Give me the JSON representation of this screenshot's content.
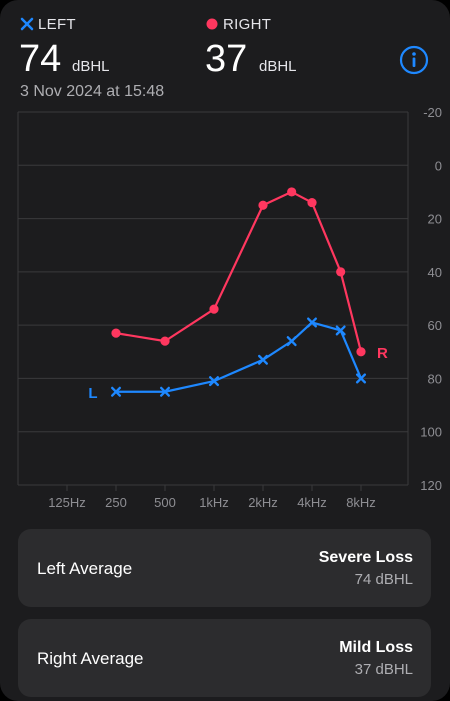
{
  "header": {
    "left": {
      "label": "LEFT",
      "value": "74",
      "unit": "dBHL",
      "color": "#1e88ff"
    },
    "right": {
      "label": "RIGHT",
      "value": "37",
      "unit": "dBHL",
      "color": "#ff375f"
    },
    "date": "3 Nov 2024 at 15:48",
    "info_icon": "info-circle-icon"
  },
  "chart_data": {
    "type": "line",
    "x_tick_labels": [
      "125Hz",
      "250",
      "500",
      "1kHz",
      "2kHz",
      "4kHz",
      "8kHz"
    ],
    "x_tick_freqs": [
      125,
      250,
      500,
      1000,
      2000,
      4000,
      8000
    ],
    "y_tick_labels": [
      "-20",
      "0",
      "20",
      "40",
      "60",
      "80",
      "100",
      "120"
    ],
    "ylim": [
      -20,
      120
    ],
    "y_inverted": true,
    "grid": true,
    "series": [
      {
        "name": "R",
        "color": "#ff375f",
        "marker": "circle",
        "x": [
          250,
          500,
          1000,
          2000,
          3000,
          4000,
          6000,
          8000
        ],
        "y": [
          63,
          66,
          54,
          15,
          10,
          14,
          40,
          70
        ]
      },
      {
        "name": "L",
        "color": "#1e88ff",
        "marker": "x",
        "x": [
          250,
          500,
          1000,
          2000,
          3000,
          4000,
          6000,
          8000
        ],
        "y": [
          85,
          85,
          81,
          73,
          66,
          59,
          62,
          80
        ]
      }
    ]
  },
  "cards": {
    "left": {
      "label": "Left Average",
      "severity": "Severe Loss",
      "value": "74 dBHL"
    },
    "right": {
      "label": "Right Average",
      "severity": "Mild Loss",
      "value": "37 dBHL"
    }
  }
}
